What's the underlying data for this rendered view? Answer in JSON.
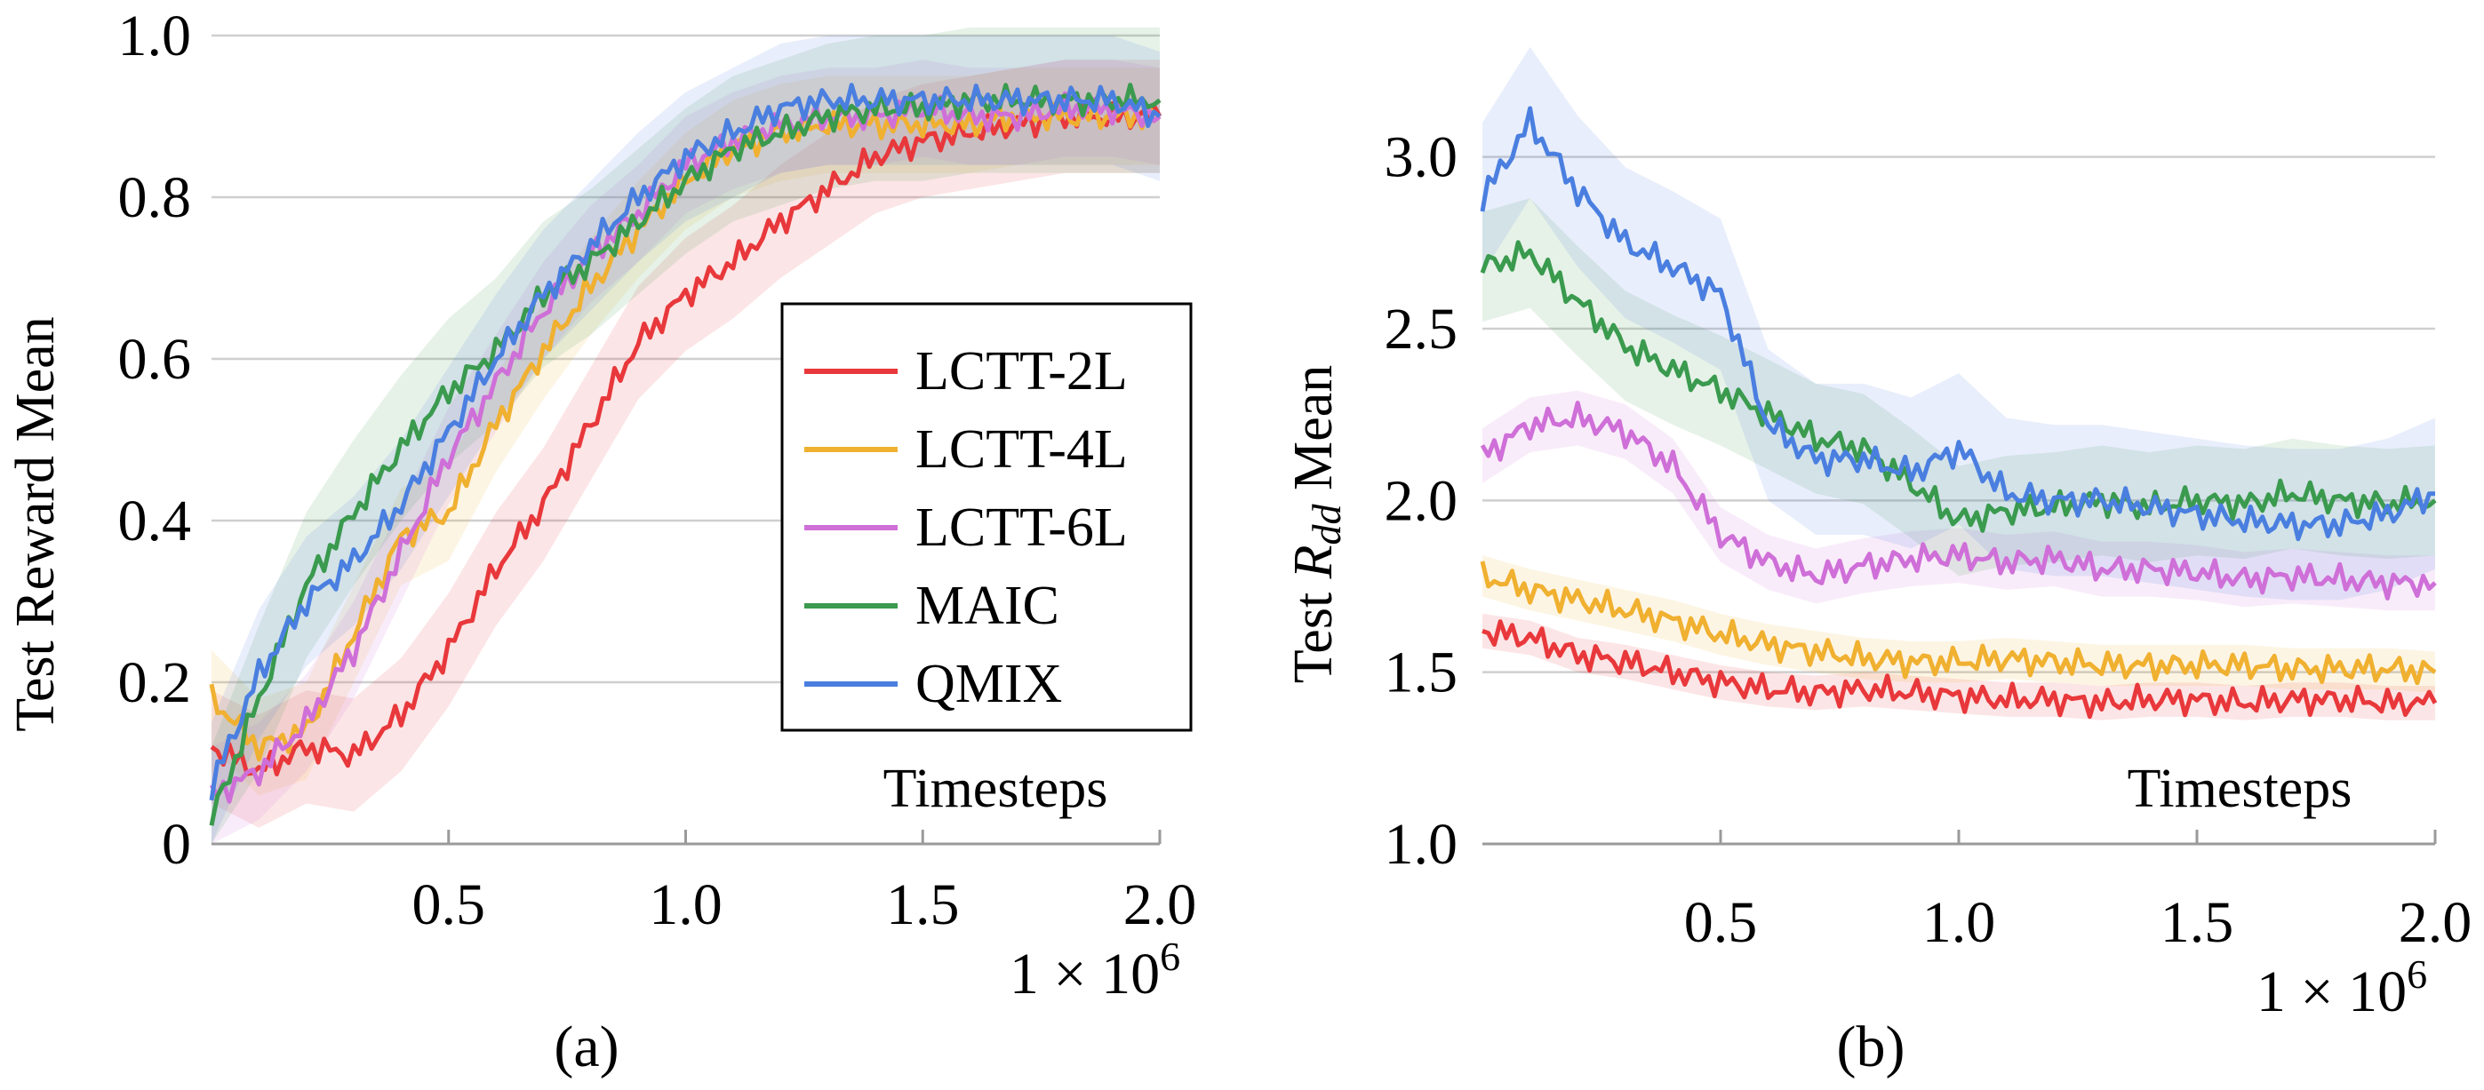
{
  "chart_data": [
    {
      "type": "line",
      "caption": "(a)",
      "ylabel": "Test Reward Mean",
      "xlabel": "Timesteps",
      "x_multiplier": "1 × 10",
      "x_multiplier_exp": "6",
      "xlim": [
        0,
        2000000
      ],
      "ylim": [
        0,
        1.0
      ],
      "x_ticks": [
        500000,
        1000000,
        1500000,
        2000000
      ],
      "x_tick_labels": [
        "0.5",
        "1.0",
        "1.5",
        "2.0"
      ],
      "y_ticks": [
        0,
        0.2,
        0.4,
        0.6,
        0.8,
        1.0
      ],
      "y_tick_labels": [
        "0",
        "0.2",
        "0.4",
        "0.6",
        "0.8",
        "1.0"
      ],
      "grid": "horizontal",
      "legend": "center-right",
      "x": [
        0,
        100000,
        200000,
        300000,
        400000,
        500000,
        600000,
        700000,
        800000,
        900000,
        1000000,
        1100000,
        1200000,
        1300000,
        1400000,
        1500000,
        1600000,
        1700000,
        1800000,
        1900000,
        2000000
      ],
      "series": [
        {
          "name": "LCTT-2L",
          "color": "#e8383b",
          "band": 0.07,
          "values": [
            0.12,
            0.09,
            0.12,
            0.11,
            0.16,
            0.24,
            0.34,
            0.42,
            0.52,
            0.62,
            0.68,
            0.72,
            0.77,
            0.81,
            0.85,
            0.87,
            0.88,
            0.89,
            0.9,
            0.9,
            0.9
          ]
        },
        {
          "name": "LCTT-4L",
          "color": "#f0b030",
          "band": 0.06,
          "values": [
            0.18,
            0.12,
            0.14,
            0.26,
            0.38,
            0.41,
            0.52,
            0.61,
            0.69,
            0.76,
            0.82,
            0.86,
            0.88,
            0.89,
            0.89,
            0.89,
            0.89,
            0.9,
            0.9,
            0.9,
            0.9
          ]
        },
        {
          "name": "LCTT-6L",
          "color": "#cf6fd8",
          "band": 0.06,
          "values": [
            0.06,
            0.09,
            0.15,
            0.24,
            0.36,
            0.48,
            0.57,
            0.66,
            0.73,
            0.78,
            0.84,
            0.87,
            0.89,
            0.9,
            0.9,
            0.91,
            0.9,
            0.9,
            0.91,
            0.91,
            0.9
          ]
        },
        {
          "name": "MAIC",
          "color": "#3a9a4e",
          "band": 0.09,
          "values": [
            0.03,
            0.18,
            0.32,
            0.41,
            0.49,
            0.56,
            0.61,
            0.68,
            0.72,
            0.77,
            0.82,
            0.86,
            0.88,
            0.9,
            0.91,
            0.91,
            0.92,
            0.92,
            0.92,
            0.92,
            0.92
          ]
        },
        {
          "name": "QMIX",
          "color": "#4a7fe0",
          "band": 0.08,
          "values": [
            0.07,
            0.21,
            0.3,
            0.35,
            0.42,
            0.51,
            0.6,
            0.68,
            0.74,
            0.8,
            0.85,
            0.88,
            0.91,
            0.92,
            0.92,
            0.92,
            0.92,
            0.92,
            0.92,
            0.92,
            0.9
          ]
        }
      ]
    },
    {
      "type": "line",
      "caption": "(b)",
      "ylabel_prefix": "Test ",
      "ylabel_sym": "R",
      "ylabel_sub": "dd",
      "ylabel_suffix": " Mean",
      "xlabel": "Timesteps",
      "x_multiplier": "1 × 10",
      "x_multiplier_exp": "6",
      "xlim": [
        0,
        2000000
      ],
      "ylim": [
        1.0,
        3.4
      ],
      "x_ticks": [
        500000,
        1000000,
        1500000,
        2000000
      ],
      "x_tick_labels": [
        "0.5",
        "1.0",
        "1.5",
        "2.0"
      ],
      "y_ticks": [
        1.0,
        1.5,
        2.0,
        2.5,
        3.0
      ],
      "y_tick_labels": [
        "1.0",
        "1.5",
        "2.0",
        "2.5",
        "3.0"
      ],
      "grid": "horizontal",
      "x": [
        0,
        100000,
        200000,
        300000,
        400000,
        500000,
        600000,
        700000,
        800000,
        900000,
        1000000,
        1100000,
        1200000,
        1300000,
        1400000,
        1500000,
        1600000,
        1700000,
        1800000,
        1900000,
        2000000
      ],
      "series": [
        {
          "name": "LCTT-2L",
          "color": "#e8383b",
          "band": 0.05,
          "values": [
            1.62,
            1.6,
            1.55,
            1.53,
            1.5,
            1.47,
            1.45,
            1.44,
            1.45,
            1.44,
            1.43,
            1.42,
            1.42,
            1.41,
            1.42,
            1.42,
            1.41,
            1.42,
            1.42,
            1.41,
            1.41
          ]
        },
        {
          "name": "LCTT-4L",
          "color": "#f0b030",
          "band": 0.06,
          "values": [
            1.78,
            1.74,
            1.71,
            1.68,
            1.65,
            1.61,
            1.58,
            1.56,
            1.54,
            1.53,
            1.53,
            1.54,
            1.53,
            1.52,
            1.52,
            1.52,
            1.52,
            1.51,
            1.51,
            1.51,
            1.5
          ]
        },
        {
          "name": "LCTT-6L",
          "color": "#cf6fd8",
          "band": 0.08,
          "values": [
            2.13,
            2.22,
            2.24,
            2.2,
            2.1,
            1.9,
            1.82,
            1.78,
            1.81,
            1.83,
            1.84,
            1.82,
            1.83,
            1.8,
            1.8,
            1.79,
            1.77,
            1.78,
            1.77,
            1.76,
            1.76
          ]
        },
        {
          "name": "MAIC",
          "color": "#3a9a4e",
          "band": 0.16,
          "values": [
            2.68,
            2.72,
            2.58,
            2.45,
            2.38,
            2.32,
            2.25,
            2.18,
            2.15,
            2.05,
            1.94,
            1.97,
            1.98,
            2.0,
            1.98,
            2.0,
            1.99,
            2.02,
            2.0,
            1.99,
            2.0
          ]
        },
        {
          "name": "QMIX",
          "color": "#4a7fe0",
          "band": 0.22,
          "values": [
            2.88,
            3.1,
            2.9,
            2.75,
            2.68,
            2.6,
            2.22,
            2.12,
            2.12,
            2.08,
            2.15,
            2.02,
            2.0,
            2.0,
            1.98,
            1.96,
            1.94,
            1.93,
            1.93,
            1.96,
            2.02
          ]
        }
      ]
    }
  ]
}
